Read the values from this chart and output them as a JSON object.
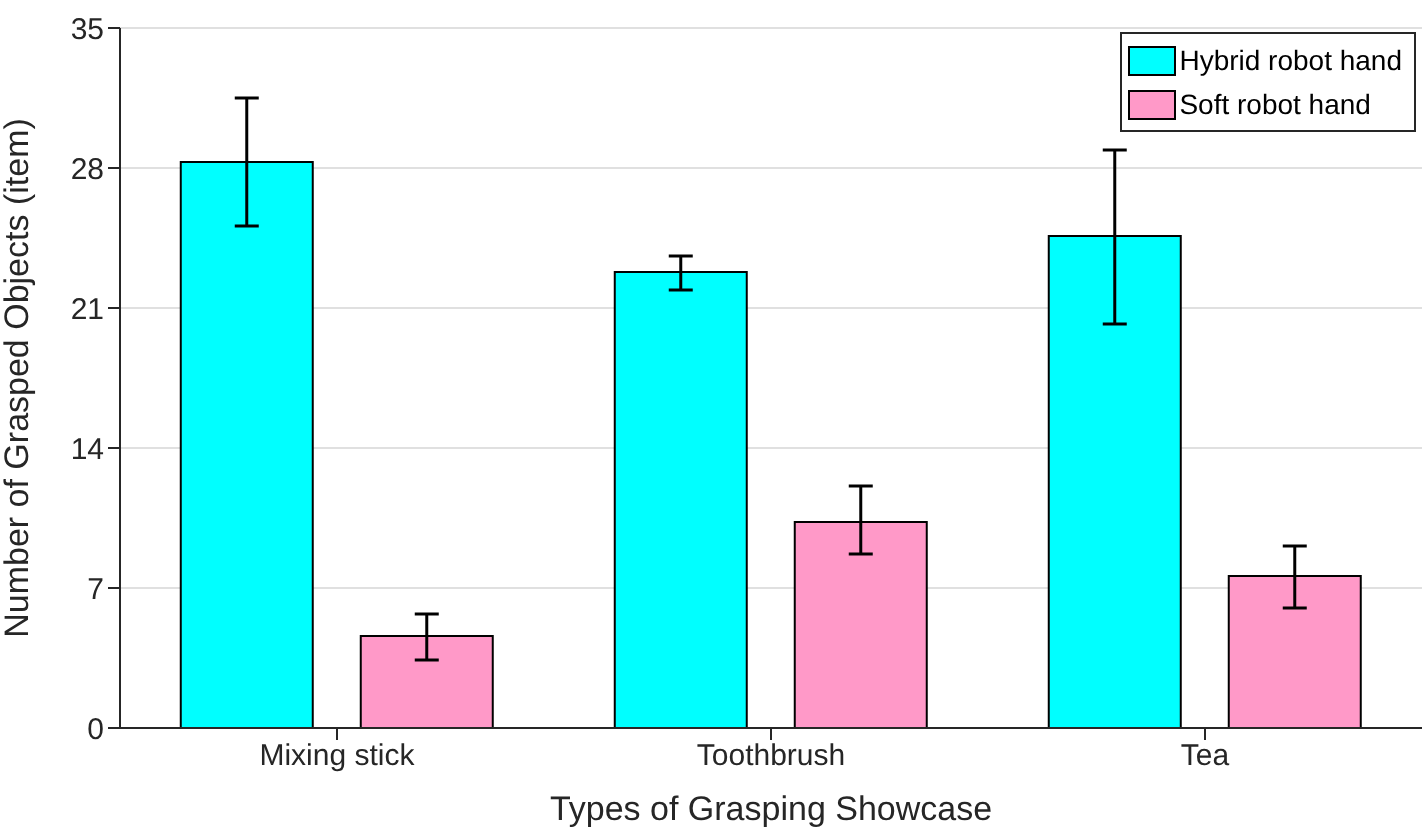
{
  "chart_data": {
    "type": "bar",
    "xlabel": "Types of Grasping Showcase",
    "ylabel": "Number of Grasped Objects (item)",
    "categories": [
      "Mixing stick",
      "Toothbrush",
      "Tea"
    ],
    "series": [
      {
        "name": "Hybrid robot hand",
        "color": "#00ffff",
        "values": [
          28.3,
          22.8,
          24.6
        ],
        "errors": [
          [
            25.1,
            31.5
          ],
          [
            21.9,
            23.6
          ],
          [
            20.2,
            28.9
          ]
        ]
      },
      {
        "name": "Soft robot hand",
        "color": "#ff99c8",
        "values": [
          4.6,
          10.3,
          7.6
        ],
        "errors": [
          [
            3.4,
            5.7
          ],
          [
            8.7,
            12.1
          ],
          [
            6.0,
            9.1
          ]
        ]
      }
    ],
    "ylim": [
      0,
      35
    ],
    "yticks": [
      0,
      7,
      14,
      21,
      28,
      35
    ],
    "grid": "y",
    "legend": "top right"
  }
}
